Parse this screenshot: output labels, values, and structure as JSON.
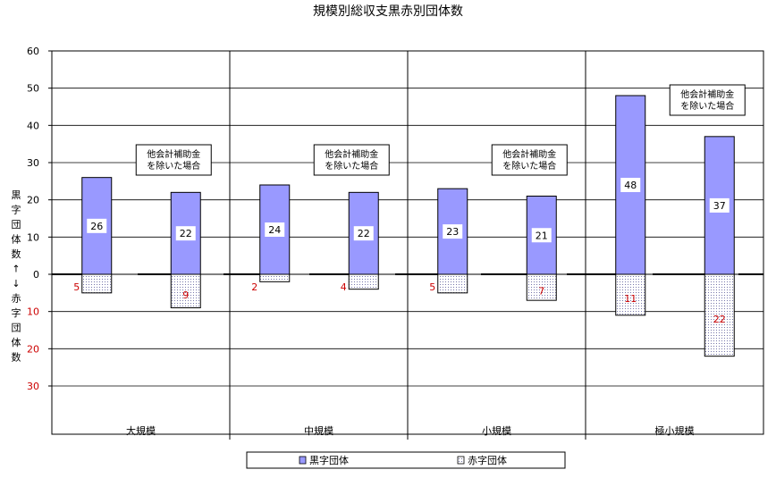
{
  "chart_data": {
    "type": "bar",
    "title": "規模別総収支黒赤別団体数",
    "ylabel": "黒字団体数↑↓赤字団体数",
    "ylim": [
      -30,
      60
    ],
    "yticks": [
      {
        "value": 60,
        "label": "60"
      },
      {
        "value": 50,
        "label": "50"
      },
      {
        "value": 40,
        "label": "40"
      },
      {
        "value": 30,
        "label": "30"
      },
      {
        "value": 20,
        "label": "20"
      },
      {
        "value": 10,
        "label": "10"
      },
      {
        "value": 0,
        "label": "0"
      },
      {
        "value": -10,
        "label": "10"
      },
      {
        "value": -20,
        "label": "20"
      },
      {
        "value": -30,
        "label": "30"
      }
    ],
    "groups": [
      "大規模",
      "中規模",
      "小規模",
      "極小規模"
    ],
    "note": "他会計補助金を除いた場合",
    "note_lines": [
      "他会計補助金",
      "を除いた場合"
    ],
    "series": [
      {
        "name": "黒字団体",
        "color": "#9999ff",
        "values": [
          [
            26,
            22
          ],
          [
            24,
            22
          ],
          [
            23,
            21
          ],
          [
            48,
            37
          ]
        ]
      },
      {
        "name": "赤字団体",
        "color": "#ffffff",
        "values": [
          [
            5,
            9
          ],
          [
            2,
            4
          ],
          [
            5,
            7
          ],
          [
            11,
            22
          ]
        ]
      }
    ],
    "grid": true,
    "legend_position": "bottom"
  },
  "colors": {
    "surplus_fill": "#9999ff",
    "deficit_label": "#cc0000",
    "grid": "#000000"
  }
}
